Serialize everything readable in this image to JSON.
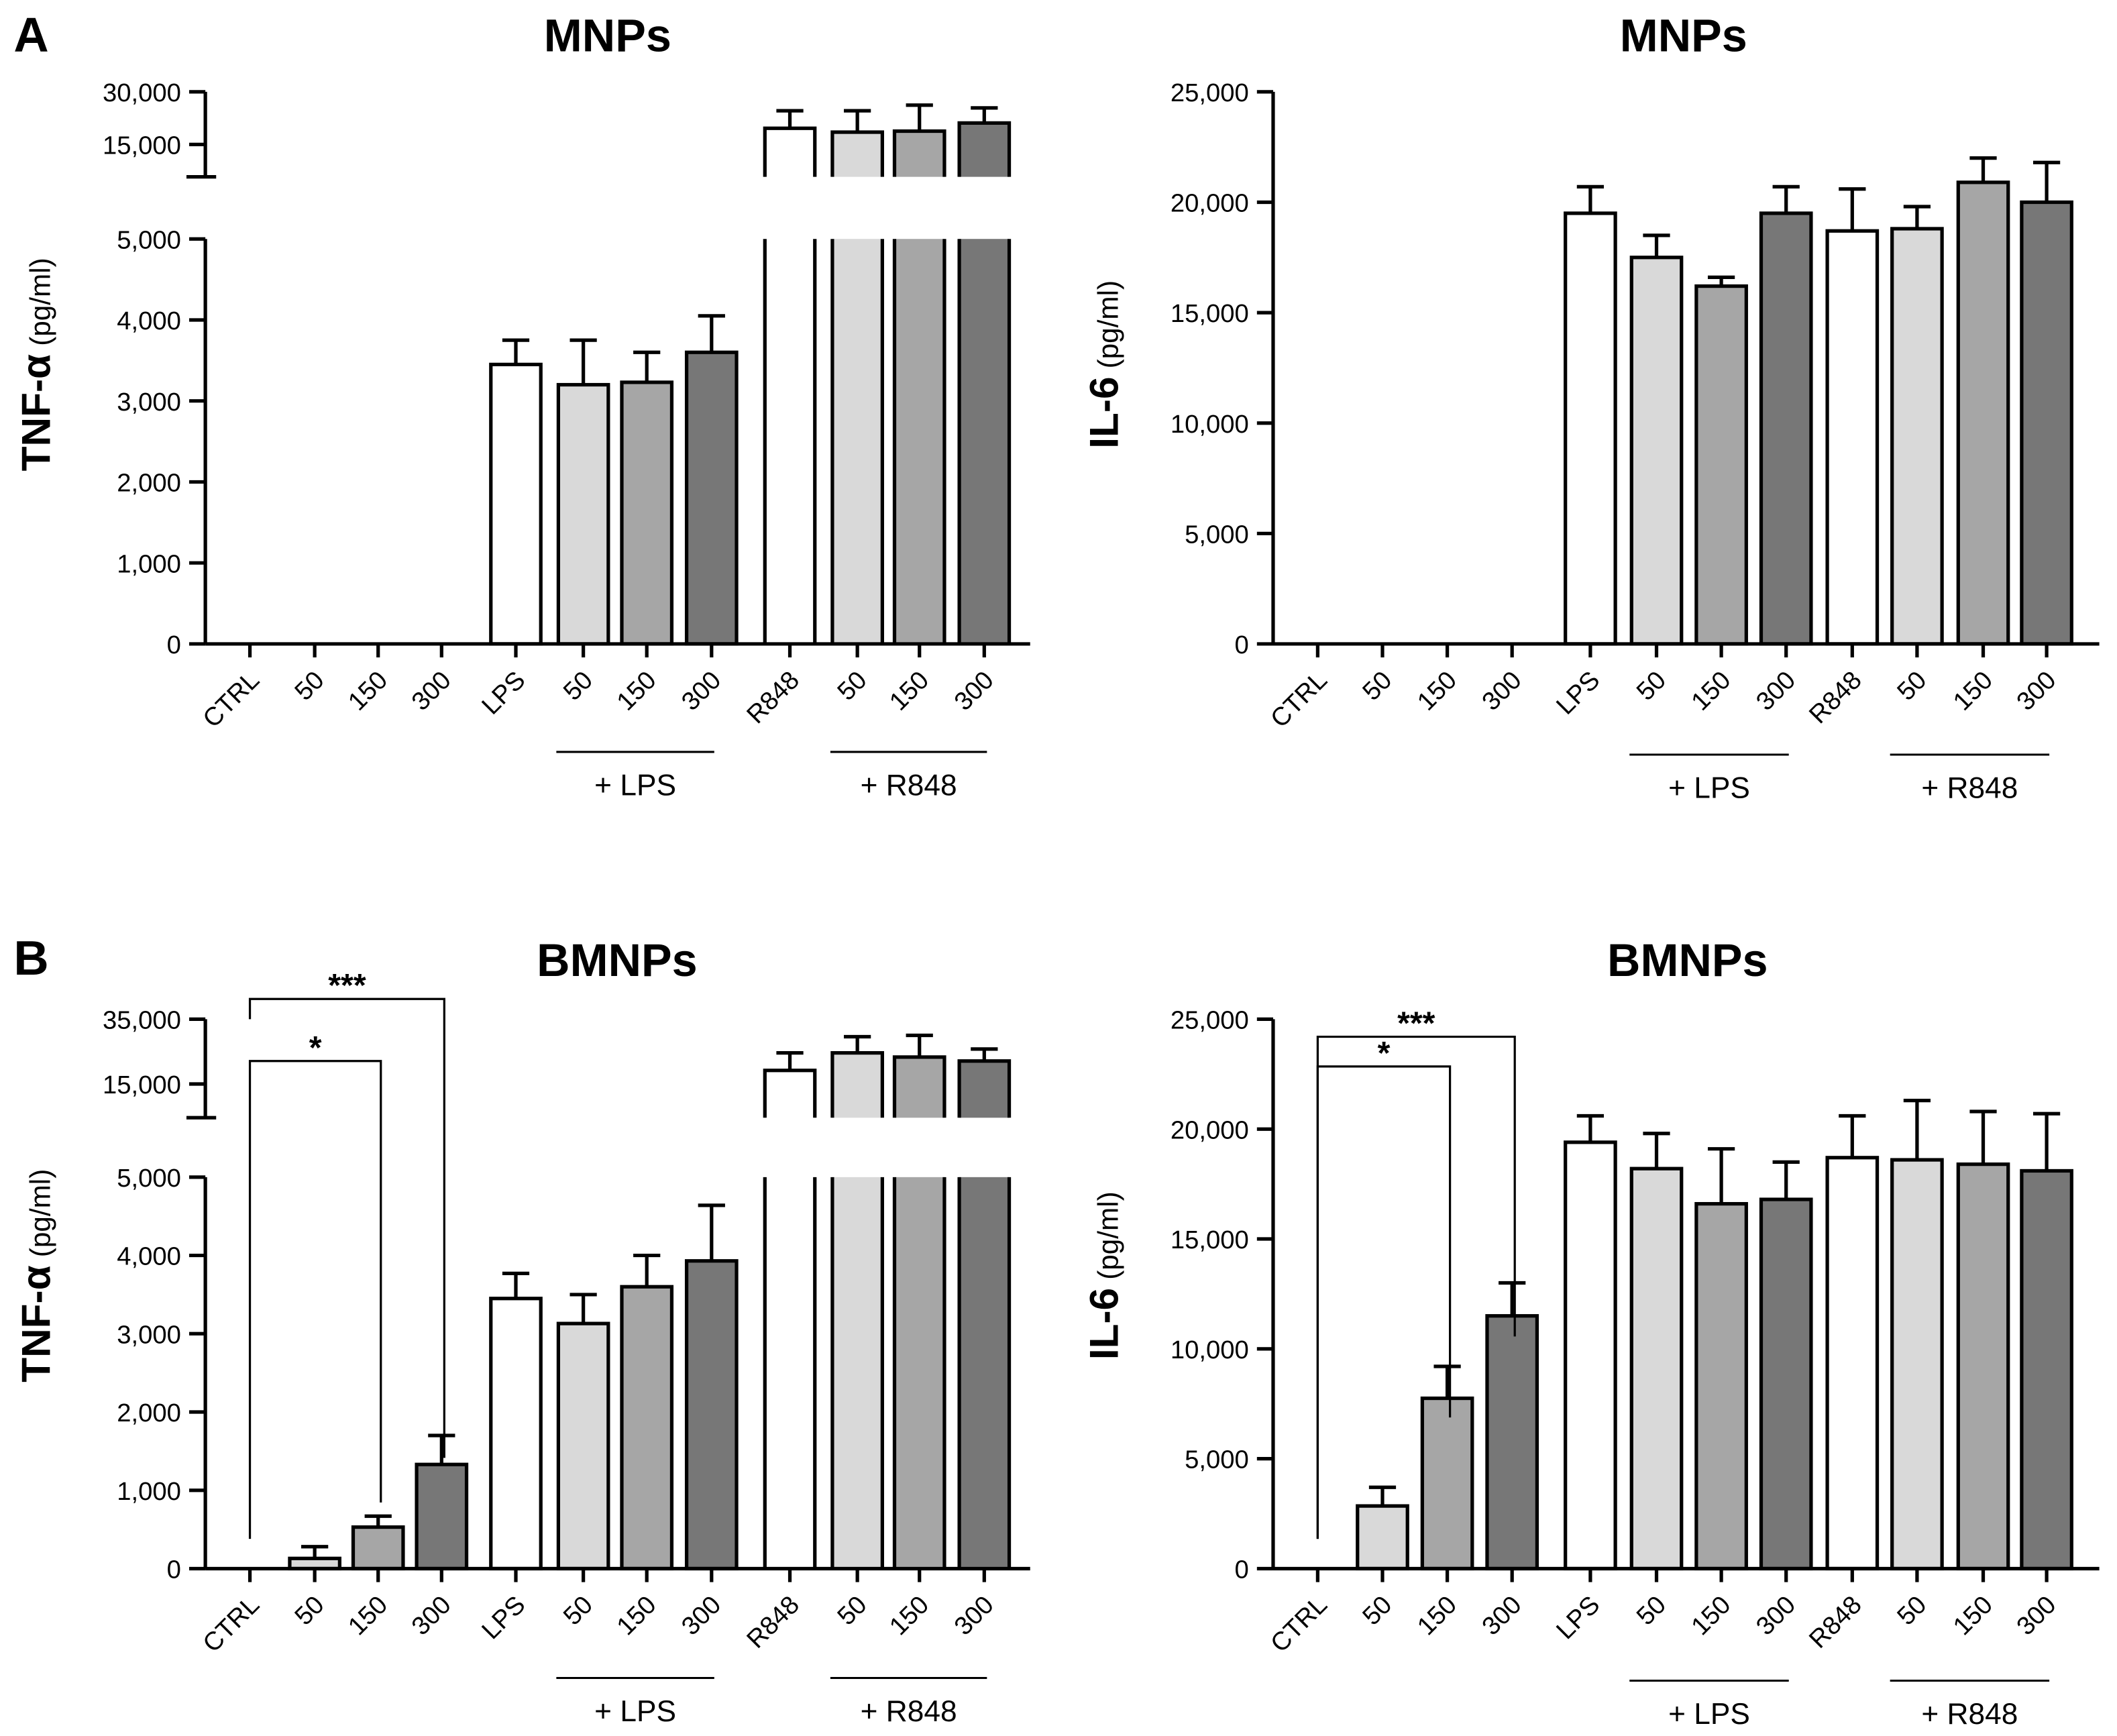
{
  "colors": {
    "white": "#ffffff",
    "light": "#d9d9d9",
    "mid": "#a6a6a6",
    "dark": "#777777",
    "stroke": "#000000"
  },
  "chart_data": [
    {
      "type": "bar",
      "panel_label": "A",
      "title": "MNPs",
      "ylabel_main": "TNF-α",
      "ylabel_unit": "(pg/ml)",
      "categories": [
        "CTRL",
        "50",
        "150",
        "300",
        "LPS",
        "50",
        "150",
        "300",
        "R848",
        "50",
        "150",
        "300"
      ],
      "values": [
        0,
        0,
        0,
        0,
        3450,
        3200,
        3230,
        3600,
        19600,
        18500,
        18800,
        21100
      ],
      "error_upper": [
        0,
        0,
        0,
        0,
        3750,
        3750,
        3600,
        4050,
        24600,
        24600,
        26200,
        25400
      ],
      "fills": [
        "white",
        "light",
        "mid",
        "dark",
        "white",
        "light",
        "mid",
        "dark",
        "white",
        "light",
        "mid",
        "dark"
      ],
      "yticks_lower": [
        "0",
        "1,000",
        "2,000",
        "3,000",
        "4,000",
        "5,000"
      ],
      "yticks_lower_values": [
        0,
        1000,
        2000,
        3000,
        4000,
        5000
      ],
      "yticks_upper": [
        "15,000",
        "30,000"
      ],
      "yticks_upper_values": [
        15000,
        30000
      ],
      "axis_break": [
        5000,
        5800
      ],
      "ylim": [
        0,
        30000
      ],
      "groups": [
        {
          "label": "+ LPS",
          "from": 5,
          "to": 7
        },
        {
          "label": "+ R848",
          "from": 9,
          "to": 11
        }
      ],
      "significance": []
    },
    {
      "type": "bar",
      "panel_label": "",
      "title": "MNPs",
      "ylabel_main": "IL-6",
      "ylabel_unit": "(pg/ml)",
      "categories": [
        "CTRL",
        "50",
        "150",
        "300",
        "LPS",
        "50",
        "150",
        "300",
        "R848",
        "50",
        "150",
        "300"
      ],
      "values": [
        0,
        0,
        0,
        0,
        19500,
        17500,
        16200,
        19500,
        18700,
        18800,
        20900,
        20000
      ],
      "error_upper": [
        0,
        0,
        0,
        0,
        20700,
        18500,
        16600,
        20700,
        20600,
        19800,
        22000,
        21800
      ],
      "fills": [
        "white",
        "light",
        "mid",
        "dark",
        "white",
        "light",
        "mid",
        "dark",
        "white",
        "light",
        "mid",
        "dark"
      ],
      "yticks_lower": [
        "0",
        "5,000",
        "10,000",
        "15,000",
        "20,000",
        "25,000"
      ],
      "yticks_lower_values": [
        0,
        5000,
        10000,
        15000,
        20000,
        25000
      ],
      "ylim": [
        0,
        25000
      ],
      "groups": [
        {
          "label": "+ LPS",
          "from": 5,
          "to": 7
        },
        {
          "label": "+ R848",
          "from": 9,
          "to": 11
        }
      ],
      "significance": []
    },
    {
      "type": "bar",
      "panel_label": "B",
      "title": "BMNPs",
      "ylabel_main": "TNF-α",
      "ylabel_unit": "(pg/ml)",
      "categories": [
        "CTRL",
        "50",
        "150",
        "300",
        "LPS",
        "50",
        "150",
        "300",
        "R848",
        "50",
        "150",
        "300"
      ],
      "values": [
        0,
        130,
        530,
        1330,
        3450,
        3130,
        3600,
        3930,
        19200,
        24600,
        23300,
        22100
      ],
      "error_upper": [
        0,
        280,
        670,
        1700,
        3770,
        3500,
        4000,
        4640,
        24600,
        29600,
        30000,
        25800
      ],
      "fills": [
        "white",
        "light",
        "mid",
        "dark",
        "white",
        "light",
        "mid",
        "dark",
        "white",
        "light",
        "mid",
        "dark"
      ],
      "yticks_lower": [
        "0",
        "1,000",
        "2,000",
        "3,000",
        "4,000",
        "5,000"
      ],
      "yticks_lower_values": [
        0,
        1000,
        2000,
        3000,
        4000,
        5000
      ],
      "yticks_upper": [
        "15,000",
        "35,000"
      ],
      "yticks_upper_values": [
        15000,
        35000
      ],
      "axis_break": [
        5000,
        4600
      ],
      "ylim": [
        0,
        35000
      ],
      "groups": [
        {
          "label": "+ LPS",
          "from": 5,
          "to": 7
        },
        {
          "label": "+ R848",
          "from": 9,
          "to": 11
        }
      ],
      "significance": [
        {
          "label": "***",
          "from": 0,
          "to": 3
        },
        {
          "label": "*",
          "from": 0,
          "to": 2
        }
      ]
    },
    {
      "type": "bar",
      "panel_label": "",
      "title": "BMNPs",
      "ylabel_main": "IL-6",
      "ylabel_unit": "(pg/ml)",
      "categories": [
        "CTRL",
        "50",
        "150",
        "300",
        "LPS",
        "50",
        "150",
        "300",
        "R848",
        "50",
        "150",
        "300"
      ],
      "values": [
        0,
        2850,
        7750,
        11500,
        19400,
        18200,
        16600,
        16800,
        18700,
        18600,
        18400,
        18100
      ],
      "error_upper": [
        0,
        3700,
        9200,
        13000,
        20600,
        19800,
        19100,
        18500,
        20600,
        21300,
        20800,
        20700
      ],
      "fills": [
        "white",
        "light",
        "mid",
        "dark",
        "white",
        "light",
        "mid",
        "dark",
        "white",
        "light",
        "mid",
        "dark"
      ],
      "yticks_lower": [
        "0",
        "5,000",
        "10,000",
        "15,000",
        "20,000",
        "25,000"
      ],
      "yticks_lower_values": [
        0,
        5000,
        10000,
        15000,
        20000,
        25000
      ],
      "ylim": [
        0,
        25000
      ],
      "groups": [
        {
          "label": "+ LPS",
          "from": 5,
          "to": 7
        },
        {
          "label": "+ R848",
          "from": 9,
          "to": 11
        }
      ],
      "significance": [
        {
          "label": "***",
          "from": 0,
          "to": 3
        },
        {
          "label": "*",
          "from": 0,
          "to": 2
        }
      ]
    }
  ]
}
